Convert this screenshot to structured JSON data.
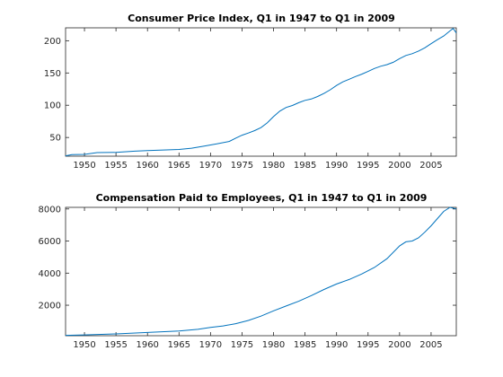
{
  "colors": {
    "series": "#0072BD",
    "axis": "#262626",
    "background": "#ffffff"
  },
  "chart_data": [
    {
      "type": "line",
      "title": "Consumer Price Index, Q1 in 1947 to Q1 in 2009",
      "xlabel": "",
      "ylabel": "",
      "xlim": [
        1947,
        2009
      ],
      "ylim": [
        21,
        220
      ],
      "xticks": [
        1950,
        1955,
        1960,
        1965,
        1970,
        1975,
        1980,
        1985,
        1990,
        1995,
        2000,
        2005
      ],
      "yticks": [
        50,
        100,
        150,
        200
      ],
      "grid": false,
      "series": [
        {
          "x": [
            1947,
            1948,
            1950,
            1952,
            1955,
            1958,
            1960,
            1963,
            1965,
            1967,
            1969,
            1971,
            1973,
            1974,
            1975,
            1976,
            1977,
            1978,
            1979,
            1980,
            1981,
            1982,
            1983,
            1984,
            1985,
            1986,
            1987,
            1988,
            1989,
            1990,
            1991,
            1992,
            1993,
            1994,
            1995,
            1996,
            1997,
            1998,
            1999,
            2000,
            2001,
            2002,
            2003,
            2004,
            2005,
            2006,
            2007,
            2008,
            2008.5,
            2009
          ],
          "y": [
            21.5,
            23.5,
            23.8,
            26.5,
            26.8,
            28.8,
            29.6,
            30.7,
            31.5,
            33.4,
            36.7,
            40.0,
            44.0,
            49.0,
            53.6,
            56.9,
            60.6,
            65.2,
            72.6,
            82.4,
            90.9,
            96.5,
            99.6,
            103.9,
            107.6,
            109.6,
            113.6,
            118.3,
            124.0,
            130.7,
            136.2,
            140.3,
            144.5,
            148.2,
            152.4,
            156.9,
            160.5,
            163.0,
            166.6,
            172.2,
            177.1,
            179.9,
            184.0,
            188.9,
            195.3,
            201.6,
            207.3,
            215.3,
            219.0,
            212.0
          ]
        }
      ]
    },
    {
      "type": "line",
      "title": "Compensation Paid to Employees, Q1 in 1947 to Q1 in 2009",
      "xlabel": "",
      "ylabel": "",
      "xlim": [
        1947,
        2009
      ],
      "ylim": [
        100,
        8100
      ],
      "xticks": [
        1950,
        1955,
        1960,
        1965,
        1970,
        1975,
        1980,
        1985,
        1990,
        1995,
        2000,
        2005
      ],
      "yticks": [
        2000,
        4000,
        6000,
        8000
      ],
      "grid": false,
      "series": [
        {
          "x": [
            1947,
            1950,
            1955,
            1960,
            1965,
            1968,
            1970,
            1972,
            1974,
            1976,
            1978,
            1980,
            1982,
            1984,
            1986,
            1988,
            1990,
            1992,
            1994,
            1996,
            1998,
            2000,
            2001,
            2002,
            2003,
            2004,
            2005,
            2006,
            2007,
            2008,
            2009
          ],
          "y": [
            120,
            150,
            210,
            300,
            390,
            500,
            620,
            710,
            850,
            1050,
            1320,
            1650,
            1950,
            2250,
            2600,
            2980,
            3320,
            3600,
            3950,
            4350,
            4900,
            5700,
            5950,
            6000,
            6200,
            6550,
            6950,
            7400,
            7850,
            8100,
            8000
          ]
        }
      ]
    }
  ]
}
